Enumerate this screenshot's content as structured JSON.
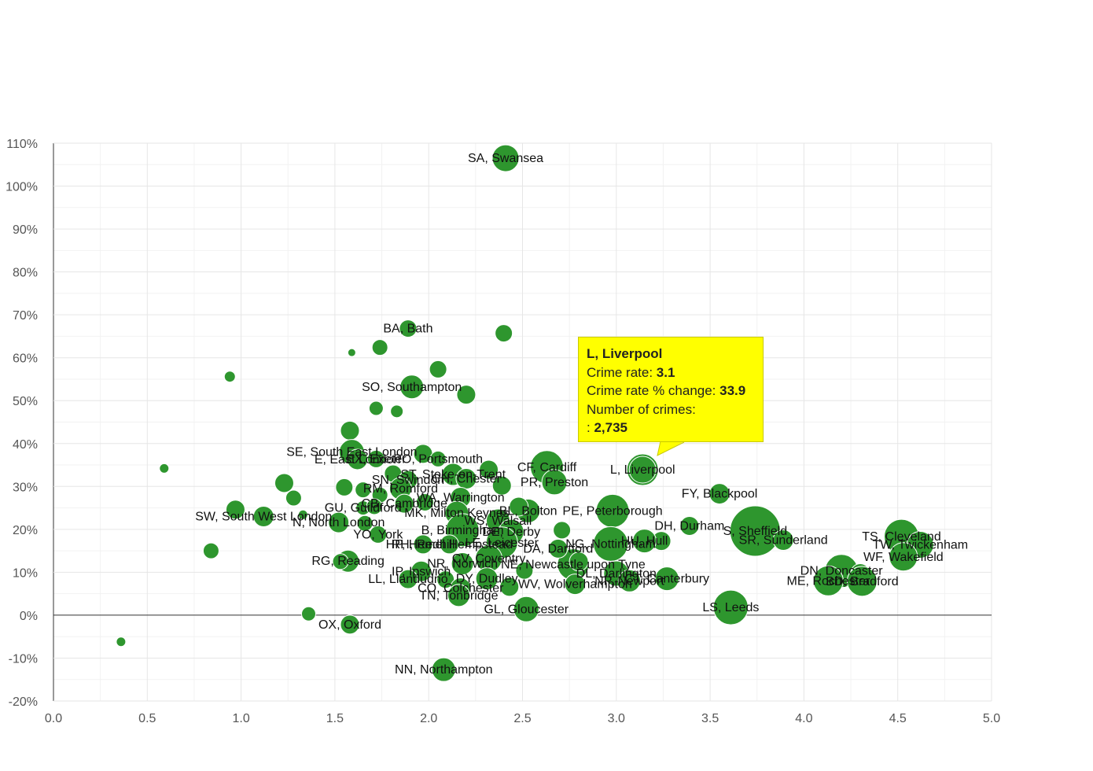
{
  "chart_data": {
    "type": "scatter",
    "xlim": [
      0,
      5
    ],
    "ylim": [
      -20,
      110
    ],
    "x_ticks": [
      "0.0",
      "0.5",
      "1.0",
      "1.5",
      "2.0",
      "2.5",
      "3.0",
      "3.5",
      "4.0",
      "4.5",
      "5.0"
    ],
    "x_tick_values": [
      0,
      0.5,
      1,
      1.5,
      2,
      2.5,
      3,
      3.5,
      4,
      4.5,
      5
    ],
    "y_ticks": [
      "-20%",
      "-10%",
      "0%",
      "10%",
      "20%",
      "30%",
      "40%",
      "50%",
      "60%",
      "70%",
      "80%",
      "90%",
      "100%",
      "110%"
    ],
    "y_tick_values": [
      -20,
      -10,
      0,
      10,
      20,
      30,
      40,
      50,
      60,
      70,
      80,
      90,
      100,
      110
    ],
    "grid": true,
    "colors": {
      "bubble": "#2e962e",
      "bubble_stroke": "#ffffff",
      "grid": "#e6e6e6",
      "tooltip_bg": "#ffff00"
    },
    "points": [
      {
        "label": "SA, Swansea",
        "x": 2.41,
        "y": 106.5,
        "r": 17
      },
      {
        "label": "BA, Bath",
        "x": 1.89,
        "y": 66.8,
        "r": 11
      },
      {
        "label": "",
        "x": 2.4,
        "y": 65.7,
        "r": 11
      },
      {
        "label": "",
        "x": 1.74,
        "y": 62.4,
        "r": 10
      },
      {
        "label": "",
        "x": 1.59,
        "y": 61.2,
        "r": 5
      },
      {
        "label": "",
        "x": 0.94,
        "y": 55.6,
        "r": 7
      },
      {
        "label": "",
        "x": 2.05,
        "y": 57.3,
        "r": 11
      },
      {
        "label": "SO, Southampton",
        "x": 1.91,
        "y": 53.2,
        "r": 15
      },
      {
        "label": "",
        "x": 2.2,
        "y": 51.4,
        "r": 12
      },
      {
        "label": "",
        "x": 1.72,
        "y": 48.2,
        "r": 9
      },
      {
        "label": "",
        "x": 1.83,
        "y": 47.5,
        "r": 8
      },
      {
        "label": "",
        "x": 1.58,
        "y": 43.0,
        "r": 12
      },
      {
        "label": "SE, South East London",
        "x": 1.59,
        "y": 38.0,
        "r": 16
      },
      {
        "label": "",
        "x": 1.97,
        "y": 37.6,
        "r": 12
      },
      {
        "label": "E, East London",
        "x": 1.62,
        "y": 36.3,
        "r": 13
      },
      {
        "label": "EX, Exeter",
        "x": 1.72,
        "y": 36.4,
        "r": 11
      },
      {
        "label": "PO, Portsmouth",
        "x": 2.05,
        "y": 36.4,
        "r": 10
      },
      {
        "label": "",
        "x": 0.59,
        "y": 34.2,
        "r": 6
      },
      {
        "label": "CF, Cardiff",
        "x": 2.63,
        "y": 34.5,
        "r": 21
      },
      {
        "label": "",
        "x": 2.32,
        "y": 33.9,
        "r": 12
      },
      {
        "label": "ST, Stoke-on-Trent",
        "x": 2.13,
        "y": 32.8,
        "r": 14
      },
      {
        "label": "",
        "x": 1.81,
        "y": 33.0,
        "r": 11
      },
      {
        "label": "SN, Swindon",
        "x": 1.89,
        "y": 31.5,
        "r": 12
      },
      {
        "label": "L, Liverpool",
        "x": 3.14,
        "y": 33.9,
        "r": 20,
        "highlight": true
      },
      {
        "label": "PR, Preston",
        "x": 2.67,
        "y": 31.0,
        "r": 16
      },
      {
        "label": "CH, Chester",
        "x": 2.2,
        "y": 31.8,
        "r": 13
      },
      {
        "label": "",
        "x": 1.23,
        "y": 30.8,
        "r": 12
      },
      {
        "label": "",
        "x": 2.39,
        "y": 30.2,
        "r": 12
      },
      {
        "label": "RM, Romford",
        "x": 1.85,
        "y": 29.5,
        "r": 14
      },
      {
        "label": "",
        "x": 1.55,
        "y": 29.8,
        "r": 11
      },
      {
        "label": "",
        "x": 1.65,
        "y": 29.2,
        "r": 10
      },
      {
        "label": "FY, Blackpool",
        "x": 3.55,
        "y": 28.3,
        "r": 13
      },
      {
        "label": "",
        "x": 1.28,
        "y": 27.3,
        "r": 10
      },
      {
        "label": "WA, Warrington",
        "x": 2.17,
        "y": 27.4,
        "r": 13
      },
      {
        "label": "",
        "x": 1.74,
        "y": 28.0,
        "r": 10
      },
      {
        "label": "GU, Guildford",
        "x": 1.65,
        "y": 25.0,
        "r": 9
      },
      {
        "label": "CB, Cambridge",
        "x": 1.87,
        "y": 26.0,
        "r": 12
      },
      {
        "label": "",
        "x": 1.98,
        "y": 26.3,
        "r": 11
      },
      {
        "label": "",
        "x": 1.71,
        "y": 25.3,
        "r": 10
      },
      {
        "label": "PE, Peterborough",
        "x": 2.98,
        "y": 24.3,
        "r": 21
      },
      {
        "label": "MK, Milton Keynes",
        "x": 2.15,
        "y": 23.8,
        "r": 15
      },
      {
        "label": "",
        "x": 0.97,
        "y": 24.6,
        "r": 12
      },
      {
        "label": "BL, Bolton",
        "x": 2.53,
        "y": 24.3,
        "r": 15
      },
      {
        "label": "",
        "x": 2.48,
        "y": 25.3,
        "r": 12
      },
      {
        "label": "SW, South West London",
        "x": 1.12,
        "y": 23.0,
        "r": 13
      },
      {
        "label": "",
        "x": 1.33,
        "y": 23.4,
        "r": 6
      },
      {
        "label": "WS, Walsall",
        "x": 2.37,
        "y": 22.0,
        "r": 15
      },
      {
        "label": "N, North London",
        "x": 1.52,
        "y": 21.6,
        "r": 13
      },
      {
        "label": "",
        "x": 1.66,
        "y": 21.4,
        "r": 10
      },
      {
        "label": "DH, Durham",
        "x": 3.39,
        "y": 20.8,
        "r": 12
      },
      {
        "label": "S, Sheffield",
        "x": 3.74,
        "y": 19.6,
        "r": 32
      },
      {
        "label": "B, Birmingham",
        "x": 2.18,
        "y": 19.8,
        "r": 21
      },
      {
        "label": "LS, Leeds",
        "x": 3.61,
        "y": 1.8,
        "r": 22
      },
      {
        "label": "",
        "x": 2.71,
        "y": 19.8,
        "r": 11
      },
      {
        "label": "DE, Derby",
        "x": 2.44,
        "y": 19.4,
        "r": 16
      },
      {
        "label": "YO, York",
        "x": 1.73,
        "y": 18.8,
        "r": 11
      },
      {
        "label": "TS, Cleveland",
        "x": 4.52,
        "y": 18.3,
        "r": 22
      },
      {
        "label": "TW, Twickenham",
        "x": 4.62,
        "y": 16.4,
        "r": 17
      },
      {
        "label": "SR, Sunderland",
        "x": 3.89,
        "y": 17.5,
        "r": 13
      },
      {
        "label": "",
        "x": 3.24,
        "y": 17.3,
        "r": 12
      },
      {
        "label": "HU, Hull",
        "x": 3.15,
        "y": 17.3,
        "r": 15
      },
      {
        "label": "NG, Nottingham",
        "x": 2.97,
        "y": 16.6,
        "r": 22
      },
      {
        "label": "LE, Leicester",
        "x": 2.39,
        "y": 16.9,
        "r": 20
      },
      {
        "label": "NE, Newcastle upon Tyne",
        "x": 2.77,
        "y": 11.8,
        "r": 20
      },
      {
        "label": "RH, Redhill",
        "x": 1.97,
        "y": 16.5,
        "r": 12
      },
      {
        "label": "GL, Gloucester",
        "x": 2.52,
        "y": 1.4,
        "r": 16
      },
      {
        "label": "HP, Hemel Hempstead",
        "x": 2.11,
        "y": 16.5,
        "r": 12
      },
      {
        "label": "DA, Dartford",
        "x": 2.69,
        "y": 15.5,
        "r": 12
      },
      {
        "label": "",
        "x": 0.84,
        "y": 15.0,
        "r": 10
      },
      {
        "label": "WF, Wakefield",
        "x": 4.53,
        "y": 13.6,
        "r": 18
      },
      {
        "label": "RG, Reading",
        "x": 1.57,
        "y": 12.6,
        "r": 14
      },
      {
        "label": "",
        "x": 1.53,
        "y": 12.5,
        "r": 10
      },
      {
        "label": "CV, Coventry",
        "x": 2.32,
        "y": 13.2,
        "r": 17
      },
      {
        "label": "NR, Norwich",
        "x": 2.18,
        "y": 12.0,
        "r": 14
      },
      {
        "label": "",
        "x": 2.8,
        "y": 12.5,
        "r": 12
      },
      {
        "label": "DN, Doncaster",
        "x": 4.2,
        "y": 10.3,
        "r": 21
      },
      {
        "label": "ME, Rochester",
        "x": 4.13,
        "y": 8.0,
        "r": 19
      },
      {
        "label": "",
        "x": 4.3,
        "y": 9.8,
        "r": 12
      },
      {
        "label": "BD, Bradford",
        "x": 4.31,
        "y": 7.9,
        "r": 19
      },
      {
        "label": "IP, Ipswich",
        "x": 1.96,
        "y": 10.2,
        "r": 13
      },
      {
        "label": "",
        "x": 2.51,
        "y": 10.4,
        "r": 11
      },
      {
        "label": "DL, Darlington",
        "x": 3.0,
        "y": 9.7,
        "r": 16
      },
      {
        "label": "CT, Canterbury",
        "x": 3.27,
        "y": 8.5,
        "r": 15
      },
      {
        "label": "NP, Newport",
        "x": 3.07,
        "y": 8.0,
        "r": 14
      },
      {
        "label": "LL, Llandudno",
        "x": 1.89,
        "y": 8.4,
        "r": 12
      },
      {
        "label": "DY, Dudley",
        "x": 2.31,
        "y": 8.5,
        "r": 14
      },
      {
        "label": "",
        "x": 2.09,
        "y": 8.3,
        "r": 11
      },
      {
        "label": "WV, Wolverhampton",
        "x": 2.78,
        "y": 7.2,
        "r": 13
      },
      {
        "label": "CO, Colchester",
        "x": 2.17,
        "y": 6.3,
        "r": 13
      },
      {
        "label": "",
        "x": 2.43,
        "y": 6.6,
        "r": 12
      },
      {
        "label": "TN, Tonbridge",
        "x": 2.16,
        "y": 4.6,
        "r": 14
      },
      {
        "label": "",
        "x": 1.36,
        "y": 0.3,
        "r": 9
      },
      {
        "label": "OX, Oxford",
        "x": 1.58,
        "y": -2.2,
        "r": 12
      },
      {
        "label": "",
        "x": 0.36,
        "y": -6.2,
        "r": 6
      },
      {
        "label": "NN, Northampton",
        "x": 2.08,
        "y": -12.7,
        "r": 15
      }
    ],
    "tooltip": {
      "title": "L, Liverpool",
      "crime_rate_label": "Crime rate: ",
      "crime_rate": "3.1",
      "pct_change_label": "Crime rate % change: ",
      "pct_change": "33.9",
      "count_label": "Number of crimes:",
      "count_prefix": ": ",
      "count": "2,735"
    }
  }
}
